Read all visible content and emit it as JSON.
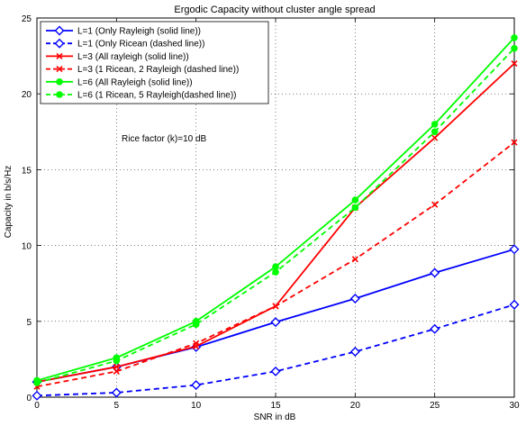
{
  "chart_data": {
    "type": "line",
    "title": "Ergodic Capacity without cluster angle spread",
    "xlabel": "SNR in dB",
    "ylabel": "Capacity in b/s/Hz",
    "xlim": [
      0,
      30
    ],
    "ylim": [
      0,
      25
    ],
    "xticks": [
      0,
      5,
      10,
      15,
      20,
      25,
      30
    ],
    "yticks": [
      0,
      5,
      10,
      15,
      20,
      25
    ],
    "grid": true,
    "legend_position": "top-left",
    "annotation": "Rice factor (k)=10 dB",
    "x": [
      0,
      5,
      10,
      15,
      20,
      25,
      30
    ],
    "series": [
      {
        "name": "L=1 (Only Rayleigh (solid line))",
        "color": "#0000ff",
        "dash": "solid",
        "marker": "diamond",
        "values": [
          1.0,
          2.0,
          3.3,
          4.95,
          6.5,
          8.2,
          9.75
        ]
      },
      {
        "name": "L=1 (Only Ricean (dashed line))",
        "color": "#0000ff",
        "dash": "dashed",
        "marker": "diamond",
        "values": [
          0.1,
          0.3,
          0.8,
          1.7,
          3.0,
          4.5,
          6.1
        ]
      },
      {
        "name": "L=3 (All rayleigh (solid line))",
        "color": "#ff0000",
        "dash": "solid",
        "marker": "x",
        "values": [
          1.0,
          2.0,
          3.35,
          6.0,
          12.5,
          17.1,
          22.0
        ]
      },
      {
        "name": "L=3 (1 Ricean, 2 Rayleigh (dashed line))",
        "color": "#ff0000",
        "dash": "dashed",
        "marker": "x",
        "values": [
          0.7,
          1.7,
          3.55,
          6.0,
          9.1,
          12.7,
          16.8
        ]
      },
      {
        "name": "L=6 (All Rayleigh (solid line))",
        "color": "#00ff00",
        "dash": "solid",
        "marker": "dot",
        "values": [
          1.1,
          2.6,
          5.0,
          8.6,
          13.0,
          18.0,
          23.7
        ]
      },
      {
        "name": "L=6 (1 Ricean, 5 Rayleigh(dashed line))",
        "color": "#00ff00",
        "dash": "dashed",
        "marker": "dot",
        "values": [
          0.95,
          2.4,
          4.8,
          8.25,
          12.5,
          17.5,
          23.0
        ]
      }
    ]
  }
}
